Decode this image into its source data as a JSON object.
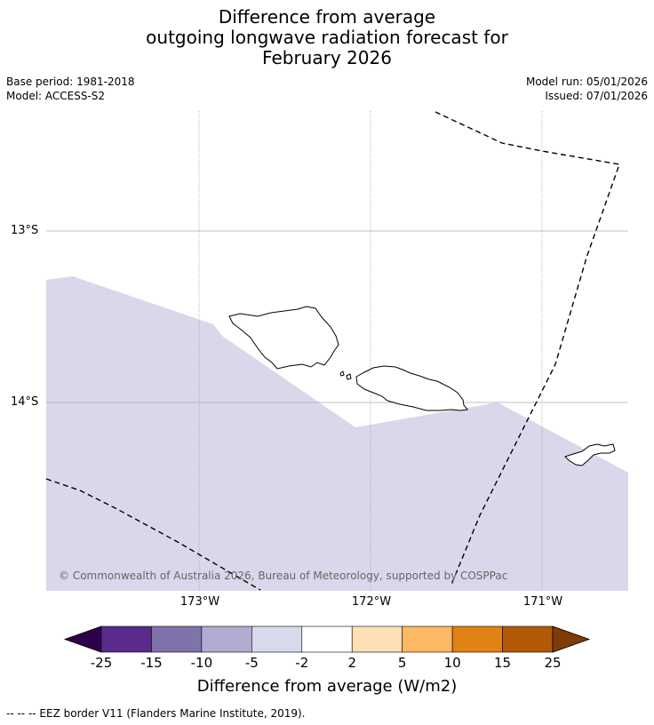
{
  "title": {
    "line1": "Difference from average",
    "line2": "outgoing longwave radiation forecast for",
    "line3": "February 2026"
  },
  "meta": {
    "base_period": "Base period: 1981-2018",
    "model": "Model: ACCESS-S2",
    "model_run": "Model run: 05/01/2026",
    "issued": "Issued: 07/01/2026"
  },
  "map": {
    "lon_labels": [
      "173°W",
      "172°W",
      "171°W"
    ],
    "lat_labels": [
      "13°S",
      "14°S"
    ],
    "anomaly_fill_color": "#d8d8ea",
    "anomaly_category": "-2 to -5",
    "copyright": "© Commonwealth of Australia 2026, Bureau of Meteorology, supported by COSPPac"
  },
  "colorbar": {
    "colors": [
      "#2d004b",
      "#5a2a8c",
      "#8073ac",
      "#b2abd2",
      "#d8daeb",
      "#ffffff",
      "#fee0b6",
      "#fdb863",
      "#e08214",
      "#b35806",
      "#7f3b08"
    ],
    "tick_labels": [
      "-25",
      "-15",
      "-10",
      "-5",
      "-2",
      "2",
      "5",
      "10",
      "15",
      "25"
    ],
    "title": "Difference from average (W/m2)"
  },
  "footnote": "--  --  -- EEZ border V11 (Flanders Marine Institute, 2019)."
}
